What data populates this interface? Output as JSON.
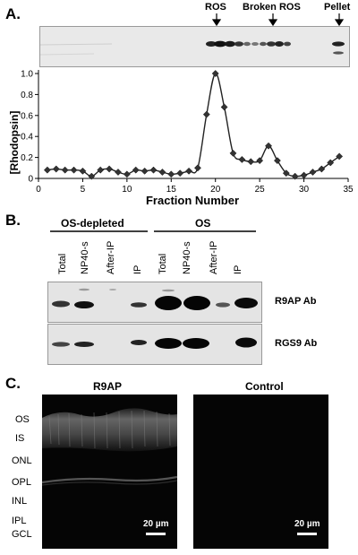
{
  "panel_a": {
    "letter": "A.",
    "gel_labels": [
      "ROS",
      "Broken ROS",
      "Pellet"
    ],
    "chart_data": {
      "type": "line",
      "xlabel": "Fraction Number",
      "ylabel": "[Rhodopsin]",
      "xlim": [
        0,
        35
      ],
      "ylim": [
        0,
        1.0
      ],
      "xticks": [
        0,
        5,
        10,
        15,
        20,
        25,
        30,
        35
      ],
      "yticks": [
        0,
        0.2,
        0.4,
        0.6,
        0.8,
        1.0
      ],
      "ytick_labels": [
        "0",
        "0.2",
        "0.4",
        "0.6",
        "0.8",
        "1.0"
      ],
      "grid": false,
      "x": [
        1,
        2,
        3,
        4,
        5,
        6,
        7,
        8,
        9,
        10,
        11,
        12,
        13,
        14,
        15,
        16,
        17,
        18,
        19,
        20,
        21,
        22,
        23,
        24,
        25,
        26,
        27,
        28,
        29,
        30,
        31,
        32,
        33,
        34
      ],
      "y": [
        0.08,
        0.09,
        0.08,
        0.08,
        0.07,
        0.02,
        0.08,
        0.09,
        0.06,
        0.04,
        0.08,
        0.07,
        0.08,
        0.06,
        0.04,
        0.05,
        0.07,
        0.1,
        0.61,
        1.0,
        0.68,
        0.24,
        0.18,
        0.16,
        0.17,
        0.31,
        0.17,
        0.05,
        0.02,
        0.03,
        0.06,
        0.09,
        0.15,
        0.21
      ]
    }
  },
  "panel_b": {
    "letter": "B.",
    "group1": "OS-depleted",
    "group2": "OS",
    "lanes": [
      "Total",
      "NP40-s",
      "After-IP",
      "IP",
      "Total",
      "NP40-s",
      "After-IP",
      "IP"
    ],
    "blot1_label": "R9AP Ab",
    "blot2_label": "RGS9 Ab"
  },
  "panel_c": {
    "letter": "C.",
    "title_left": "R9AP",
    "title_right": "Control",
    "layers": [
      "OS",
      "IS",
      "ONL",
      "OPL",
      "INL",
      "IPL",
      "GCL"
    ],
    "scale_bar": "20 µm"
  }
}
